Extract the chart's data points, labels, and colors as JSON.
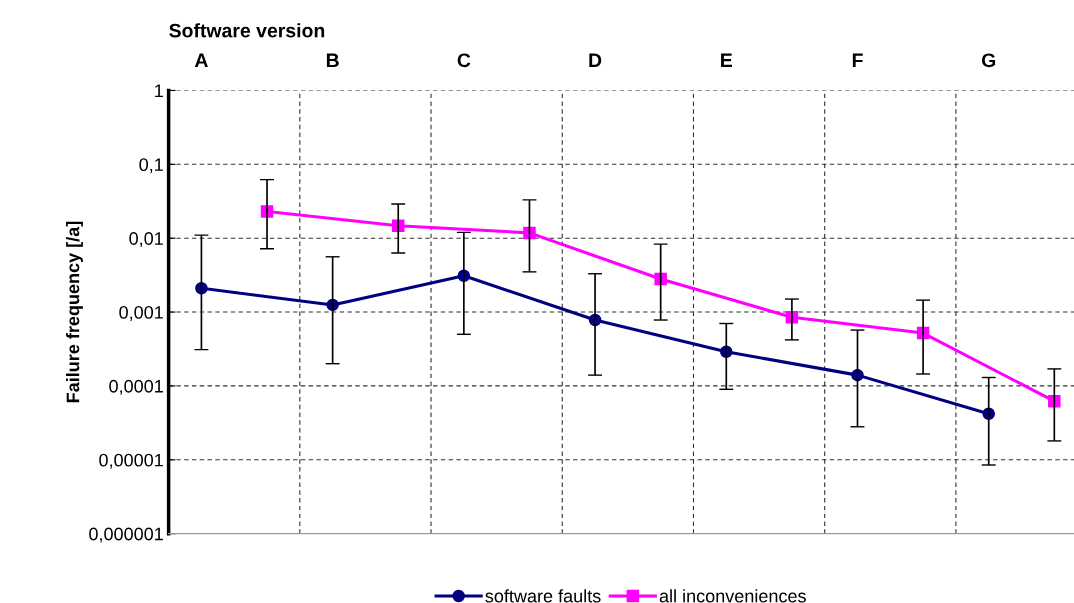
{
  "chart_data": {
    "type": "line",
    "xlabel": "Software version",
    "ylabel": "Failure frequency [/a]",
    "categories": [
      "A",
      null,
      "B",
      null,
      "C",
      null,
      "D",
      null,
      "E",
      null,
      "F",
      null,
      "G",
      null
    ],
    "log": "y",
    "ylim": [
      1e-06,
      1
    ],
    "yticks": [
      {
        "value": 1e-06,
        "label": "0,000001"
      },
      {
        "value": 1e-05,
        "label": "0,00001"
      },
      {
        "value": 0.0001,
        "label": "0,0001"
      },
      {
        "value": 0.001,
        "label": "0,001"
      },
      {
        "value": 0.01,
        "label": "0,01"
      },
      {
        "value": 0.1,
        "label": "0,1"
      },
      {
        "value": 1,
        "label": "1"
      }
    ],
    "grid": true,
    "legend": "bottom",
    "series": [
      {
        "name": "software faults",
        "color": "#000080",
        "marker": "circle",
        "values": [
          0.0021,
          null,
          0.00125,
          null,
          0.0031,
          null,
          0.00078,
          null,
          0.00029,
          null,
          0.00014,
          null,
          4.2e-05,
          null
        ],
        "errors": [
          [
            0.00031,
            0.011
          ],
          null,
          [
            0.0002,
            0.0056
          ],
          null,
          [
            0.0005,
            0.012
          ],
          null,
          [
            0.00014,
            0.0033
          ],
          null,
          [
            9e-05,
            0.0007
          ],
          null,
          [
            2.8e-05,
            0.00057
          ],
          null,
          [
            8.5e-06,
            0.00013
          ],
          null
        ]
      },
      {
        "name": "all inconveniences",
        "color": "#ff00ff",
        "marker": "square",
        "values": [
          null,
          0.023,
          null,
          0.0147,
          null,
          0.0118,
          null,
          0.0028,
          null,
          0.00085,
          null,
          0.00052,
          null,
          6.2e-05
        ],
        "errors": [
          null,
          [
            0.0072,
            0.062
          ],
          null,
          [
            0.0063,
            0.029
          ],
          null,
          [
            0.0035,
            0.033
          ],
          null,
          [
            0.00078,
            0.0083
          ],
          null,
          [
            0.00042,
            0.0015
          ],
          null,
          [
            0.000145,
            0.00145
          ],
          null,
          [
            1.8e-05,
            0.00017
          ]
        ]
      }
    ]
  }
}
